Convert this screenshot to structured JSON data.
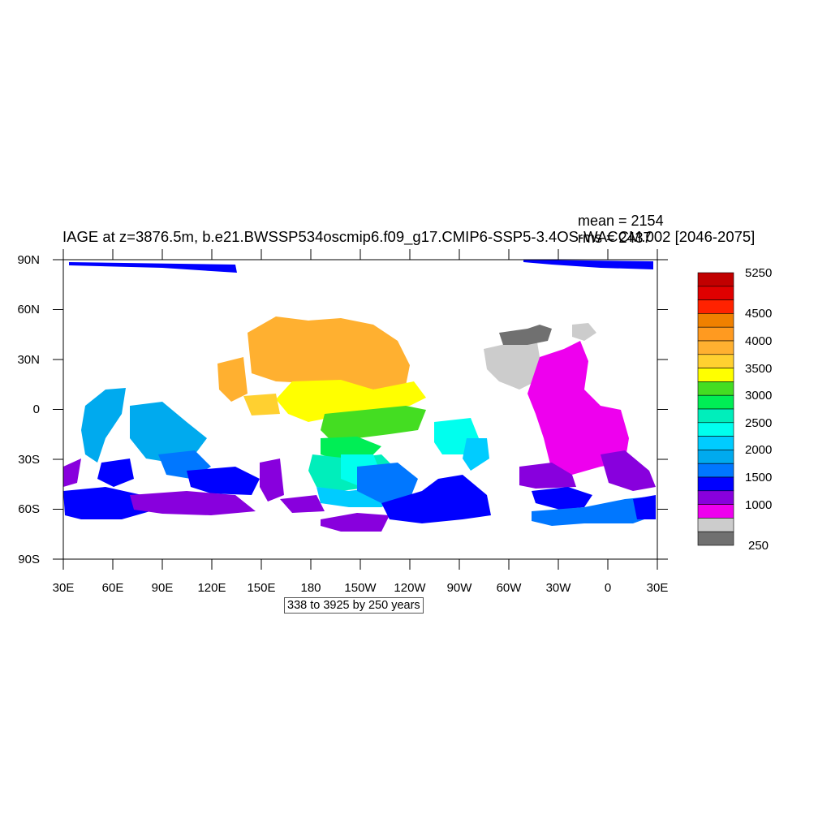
{
  "header": {
    "title": "IAGE at z=3876.5m, b.e21.BWSSP534oscmip6.f09_g17.CMIP6-SSP5-3.4OS-WACCM.002 [2046-2075]",
    "mean": "mean = 2154",
    "rms": "rms = 2437"
  },
  "info_box": "338 to 3925 by 250 years",
  "axes": {
    "lat_labels": [
      "90N",
      "60N",
      "30N",
      "0",
      "30S",
      "60S",
      "90S"
    ],
    "lon_labels": [
      "30E",
      "60E",
      "90E",
      "120E",
      "150E",
      "180",
      "150W",
      "120W",
      "90W",
      "60W",
      "30W",
      "0",
      "30E"
    ]
  },
  "colorbar": {
    "labels": [
      "5250",
      "4500",
      "4000",
      "3500",
      "3000",
      "2500",
      "2000",
      "1500",
      "1000",
      "250"
    ],
    "colors_top_to_bottom": [
      "#c10000",
      "#e00000",
      "#ff2200",
      "#f08000",
      "#ff9a20",
      "#ffb030",
      "#ffd030",
      "#ffff00",
      "#44dd22",
      "#00ee55",
      "#00eebb",
      "#00ffee",
      "#00ccff",
      "#00aaee",
      "#0077ff",
      "#0000ff",
      "#8800dd",
      "#ee00ee",
      "#cccccc",
      "#707070"
    ]
  }
}
